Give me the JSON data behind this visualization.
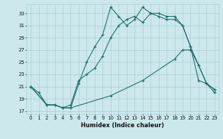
{
  "xlabel": "Humidex (Indice chaleur)",
  "bg_color": "#cce8ec",
  "grid_color": "#aacdd4",
  "line_color": "#1e6b6b",
  "xlim": [
    -0.5,
    23.5
  ],
  "ylim": [
    16.5,
    34.5
  ],
  "yticks": [
    17,
    19,
    21,
    23,
    25,
    27,
    29,
    31,
    33
  ],
  "xticks": [
    0,
    1,
    2,
    3,
    4,
    5,
    6,
    7,
    8,
    9,
    10,
    11,
    12,
    13,
    14,
    15,
    16,
    17,
    18,
    19,
    20,
    21,
    22,
    23
  ],
  "line1_x": [
    0,
    1,
    2,
    3,
    4,
    5,
    6,
    7,
    8,
    9,
    10,
    11,
    12,
    13,
    14,
    15,
    16,
    17,
    18,
    19,
    20,
    21,
    22,
    23
  ],
  "line1_y": [
    21,
    20,
    18,
    18,
    17.5,
    17.5,
    21.5,
    25,
    27.5,
    29.5,
    34,
    32.5,
    31,
    32,
    34,
    33,
    33,
    32.5,
    32.5,
    31,
    27.5,
    24.5,
    21.5,
    20
  ],
  "line2_x": [
    0,
    2,
    3,
    4,
    5,
    6,
    7,
    8,
    9,
    10,
    11,
    12,
    13,
    14,
    15,
    16,
    17,
    18,
    19,
    20,
    21,
    22,
    23
  ],
  "line2_y": [
    21,
    18,
    18,
    17.5,
    18,
    22,
    23,
    24,
    26,
    29,
    31,
    32,
    32.5,
    31.5,
    33,
    32.5,
    32,
    32,
    31,
    27.5,
    22,
    21.5,
    20.5
  ],
  "line3_x": [
    0,
    2,
    3,
    4,
    5,
    10,
    14,
    18,
    19,
    20,
    21,
    22,
    23
  ],
  "line3_y": [
    21,
    18,
    18,
    17.5,
    17.5,
    19.5,
    22,
    25.5,
    27,
    27,
    24.5,
    21.5,
    20.5
  ]
}
